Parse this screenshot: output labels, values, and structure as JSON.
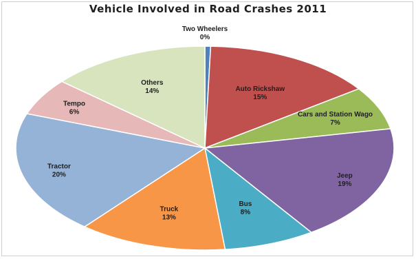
{
  "chart_data": {
    "type": "pie",
    "title": "Vehicle Involved in Road Crashes 2011",
    "slices": [
      {
        "name": "Two Wheelers",
        "value_label": "0%",
        "value": 0.5,
        "color": "#4f81bd",
        "label_color": "#1f1f1f"
      },
      {
        "name": "Auto Rickshaw",
        "value_label": "15%",
        "value": 15,
        "color": "#c0504d",
        "label_color": "#1f1f1f"
      },
      {
        "name": "Cars and Station Wago",
        "value_label": "7%",
        "value": 7,
        "color": "#9bbb59",
        "label_color": "#1f1f1f"
      },
      {
        "name": "Jeep",
        "value_label": "19%",
        "value": 19,
        "color": "#8064a2",
        "label_color": "#1f1f1f"
      },
      {
        "name": "Bus",
        "value_label": "8%",
        "value": 8,
        "color": "#4bacc6",
        "label_color": "#1f1f1f"
      },
      {
        "name": "Truck",
        "value_label": "13%",
        "value": 13,
        "color": "#f79646",
        "label_color": "#1f1f1f"
      },
      {
        "name": "Tractor",
        "value_label": "20%",
        "value": 20,
        "color": "#95b3d7",
        "label_color": "#1f1f1f"
      },
      {
        "name": "Tempo",
        "value_label": "6%",
        "value": 6,
        "color": "#e6b9b8",
        "label_color": "#1f1f1f"
      },
      {
        "name": "Others",
        "value_label": "14%",
        "value": 14,
        "color": "#d7e4bd",
        "label_color": "#1f1f1f"
      }
    ]
  }
}
